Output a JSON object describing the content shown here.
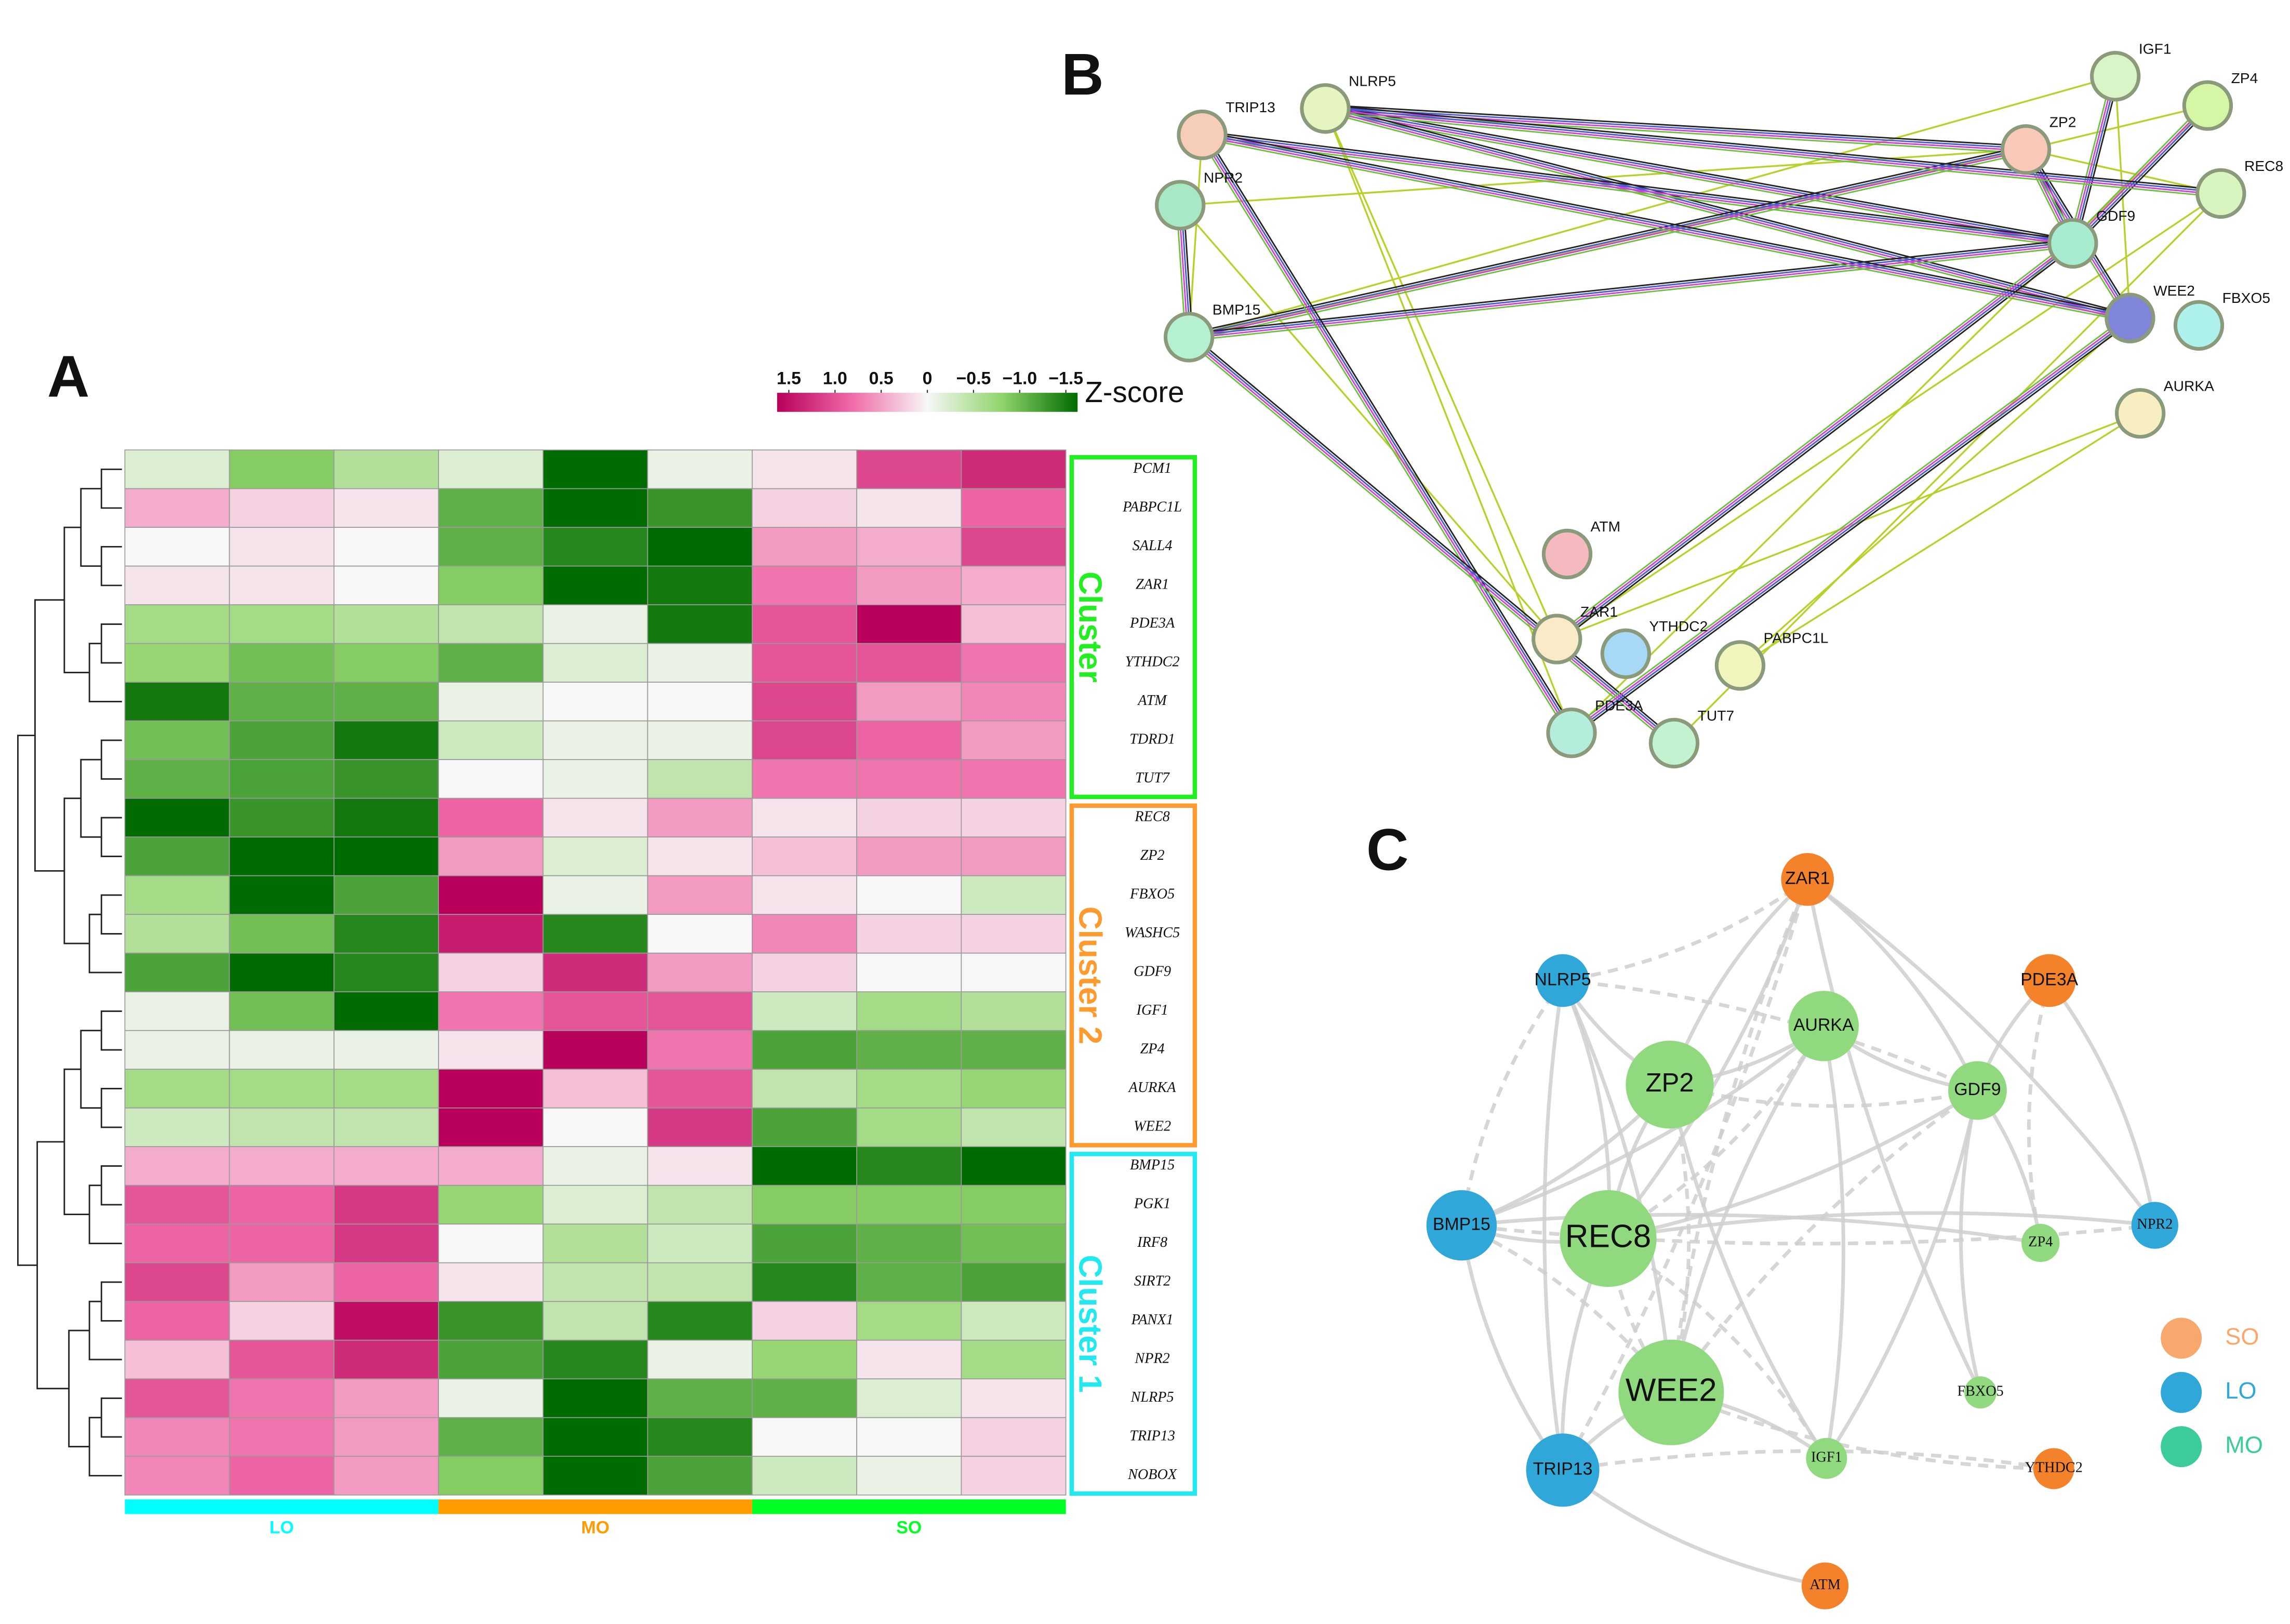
{
  "panel_labels": {
    "a": "A",
    "b": "B",
    "c": "C"
  },
  "chart_data": {
    "type": "heatmap",
    "colorbar_title": "Z-score",
    "clim": [
      1.5,
      -1.5
    ],
    "cticks": [
      1.5,
      {
        "value": 1.0,
        "label": "1.0"
      },
      0.5,
      0,
      {
        "value": -0.5,
        "label": "−0.5"
      },
      {
        "value": -1.0,
        "label": "−1.0"
      },
      {
        "value": -1.5,
        "label": "−1.5"
      }
    ],
    "colors": [
      "#b8005a",
      "#f06ba8",
      "#f7f7f7",
      "#8fd46a",
      "#006b00"
    ],
    "column_groups": [
      {
        "name": "LO",
        "color": "#00ffff"
      },
      {
        "name": "MO",
        "color": "#ff9c00"
      },
      {
        "name": "SO",
        "color": "#00ff22"
      }
    ],
    "row_groups": [
      {
        "name": "Cluster",
        "color": "#22ee22",
        "rows": [
          "PCM1",
          "PABPC1L",
          "SALL4",
          "ZAR1",
          "PDE3A",
          "YTHDC2",
          "ATM",
          "TDRD1",
          "TUT7"
        ],
        "values": [
          [
            -0.2,
            -0.8,
            -0.5,
            -0.2,
            -1.5,
            -0.1,
            0.1,
            1.0,
            1.2
          ],
          [
            0.4,
            0.2,
            0.1,
            -1.0,
            -1.6,
            -1.2,
            0.2,
            0.1,
            0.8
          ],
          [
            0.0,
            0.1,
            0.0,
            -1.0,
            -1.3,
            -1.5,
            0.5,
            0.4,
            1.0
          ],
          [
            0.1,
            0.1,
            0.0,
            -0.8,
            -1.6,
            -1.4,
            0.7,
            0.5,
            0.4
          ],
          [
            -0.6,
            -0.6,
            -0.5,
            -0.4,
            -0.1,
            -1.4,
            0.9,
            1.5,
            0.3
          ],
          [
            -0.7,
            -0.9,
            -0.8,
            -1.0,
            -0.2,
            -0.1,
            0.9,
            0.9,
            0.7
          ],
          [
            -1.4,
            -1.0,
            -1.0,
            -0.1,
            0.0,
            0.0,
            1.0,
            0.5,
            0.6
          ],
          [
            -0.9,
            -1.1,
            -1.4,
            -0.3,
            -0.1,
            -0.1,
            1.0,
            0.8,
            0.5
          ],
          [
            -1.0,
            -1.1,
            -1.2,
            0.0,
            -0.1,
            -0.4,
            0.7,
            0.7,
            0.7
          ]
        ]
      },
      {
        "name": "Cluster 2",
        "color": "#ff9a2e",
        "rows": [
          "REC8",
          "ZP2",
          "FBXO5",
          "WASHC5",
          "GDF9",
          "IGF1",
          "ZP4",
          "AURKA",
          "WEE2"
        ],
        "values": [
          [
            -1.5,
            -1.2,
            -1.4,
            0.8,
            0.1,
            0.5,
            0.1,
            0.2,
            0.2
          ],
          [
            -1.1,
            -1.5,
            -1.5,
            0.5,
            -0.2,
            0.1,
            0.3,
            0.5,
            0.5
          ],
          [
            -0.6,
            -1.5,
            -1.1,
            1.5,
            -0.1,
            0.5,
            0.1,
            0.0,
            -0.3
          ],
          [
            -0.5,
            -0.9,
            -1.3,
            1.3,
            -1.3,
            0.0,
            0.6,
            0.2,
            0.2
          ],
          [
            -1.1,
            -1.5,
            -1.3,
            0.2,
            1.2,
            0.5,
            0.2,
            0.0,
            0.0
          ],
          [
            -0.1,
            -0.9,
            -1.5,
            0.7,
            0.9,
            0.9,
            -0.3,
            -0.6,
            -0.5
          ],
          [
            -0.1,
            -0.1,
            -0.1,
            0.1,
            1.6,
            0.7,
            -1.1,
            -1.0,
            -1.0
          ],
          [
            -0.6,
            -0.6,
            -0.6,
            1.6,
            0.3,
            0.9,
            -0.4,
            -0.6,
            -0.7
          ],
          [
            -0.3,
            -0.4,
            -0.4,
            1.6,
            0.0,
            1.1,
            -1.1,
            -0.6,
            -0.4
          ]
        ]
      },
      {
        "name": "Cluster 1",
        "color": "#22e8f0",
        "rows": [
          "BMP15",
          "PGK1",
          "IRF8",
          "SIRT2",
          "PANX1",
          "NPR2",
          "NLRP5",
          "TRIP13",
          "NOBOX"
        ],
        "values": [
          [
            0.4,
            0.4,
            0.4,
            0.4,
            -0.1,
            0.1,
            -1.5,
            -1.3,
            -1.5
          ],
          [
            0.9,
            0.8,
            1.1,
            -0.7,
            -0.2,
            -0.4,
            -0.8,
            -0.8,
            -0.8
          ],
          [
            0.8,
            0.8,
            1.1,
            0.0,
            -0.5,
            -0.3,
            -1.1,
            -1.0,
            -0.9
          ],
          [
            1.0,
            0.5,
            0.8,
            0.1,
            -0.4,
            -0.4,
            -1.3,
            -1.0,
            -1.1
          ],
          [
            0.8,
            0.2,
            1.4,
            -1.2,
            -0.4,
            -1.3,
            0.2,
            -0.6,
            -0.3
          ],
          [
            0.3,
            0.9,
            1.2,
            -1.1,
            -1.3,
            -0.1,
            -0.7,
            0.1,
            -0.6
          ],
          [
            0.9,
            0.7,
            0.5,
            -0.1,
            -1.5,
            -1.0,
            -1.0,
            -0.2,
            0.1
          ],
          [
            0.6,
            0.7,
            0.5,
            -1.0,
            -1.6,
            -1.3,
            0.0,
            0.0,
            0.2
          ],
          [
            0.6,
            0.8,
            0.5,
            -0.8,
            -1.6,
            -1.1,
            -0.3,
            -0.1,
            0.2
          ]
        ]
      }
    ]
  },
  "network_b": {
    "nodes": [
      {
        "label": "TRIP13",
        "color": "#f6cdb8"
      },
      {
        "label": "NLRP5",
        "color": "#e6f5c0"
      },
      {
        "label": "NPR2",
        "color": "#a9e8c5"
      },
      {
        "label": "BMP15",
        "color": "#b5f0d0"
      },
      {
        "label": "IGF1",
        "color": "#d9f5c7"
      },
      {
        "label": "ZP4",
        "color": "#d5f7a5"
      },
      {
        "label": "ZP2",
        "color": "#f8c9b9"
      },
      {
        "label": "REC8",
        "color": "#d8f5c0"
      },
      {
        "label": "GDF9",
        "color": "#a8ecd0"
      },
      {
        "label": "WEE2",
        "color": "#7f85d8"
      },
      {
        "label": "FBXO5",
        "color": "#aef0ea"
      },
      {
        "label": "AURKA",
        "color": "#f7efc2"
      },
      {
        "label": "ATM",
        "color": "#f5b9c0"
      },
      {
        "label": "ZAR1",
        "color": "#faebc8"
      },
      {
        "label": "YTHDC2",
        "color": "#a7d8f5"
      },
      {
        "label": "PABPC1L",
        "color": "#eff5bd"
      },
      {
        "label": "PDE3A",
        "color": "#b4eddc"
      },
      {
        "label": "TUT7",
        "color": "#c2f2cf"
      }
    ]
  },
  "network_c": {
    "nodes": [
      {
        "label": "ZAR1",
        "color": "#f4822a"
      },
      {
        "label": "NLRP5",
        "color": "#2fa7d8"
      },
      {
        "label": "PDE3A",
        "color": "#f4822a"
      },
      {
        "label": "AURKA",
        "color": "#90d97f"
      },
      {
        "label": "ZP2",
        "color": "#90d97f"
      },
      {
        "label": "GDF9",
        "color": "#90d97f"
      },
      {
        "label": "BMP15",
        "color": "#2fa7d8"
      },
      {
        "label": "REC8",
        "color": "#90d97f"
      },
      {
        "label": "ZP4",
        "color": "#90d97f"
      },
      {
        "label": "NPR2",
        "color": "#2fa7d8"
      },
      {
        "label": "WEE2",
        "color": "#90d97f"
      },
      {
        "label": "FBXO5",
        "color": "#90d97f"
      },
      {
        "label": "IGF1",
        "color": "#90d97f"
      },
      {
        "label": "YTHDC2",
        "color": "#f4822a"
      },
      {
        "label": "TRIP13",
        "color": "#2fa7d8"
      },
      {
        "label": "ATM",
        "color": "#f4822a"
      }
    ],
    "legend": [
      {
        "name": "SO",
        "color": "#f9a86d"
      },
      {
        "name": "LO",
        "color": "#2fa7d8"
      },
      {
        "name": "MO",
        "color": "#3ccc9c"
      }
    ]
  }
}
